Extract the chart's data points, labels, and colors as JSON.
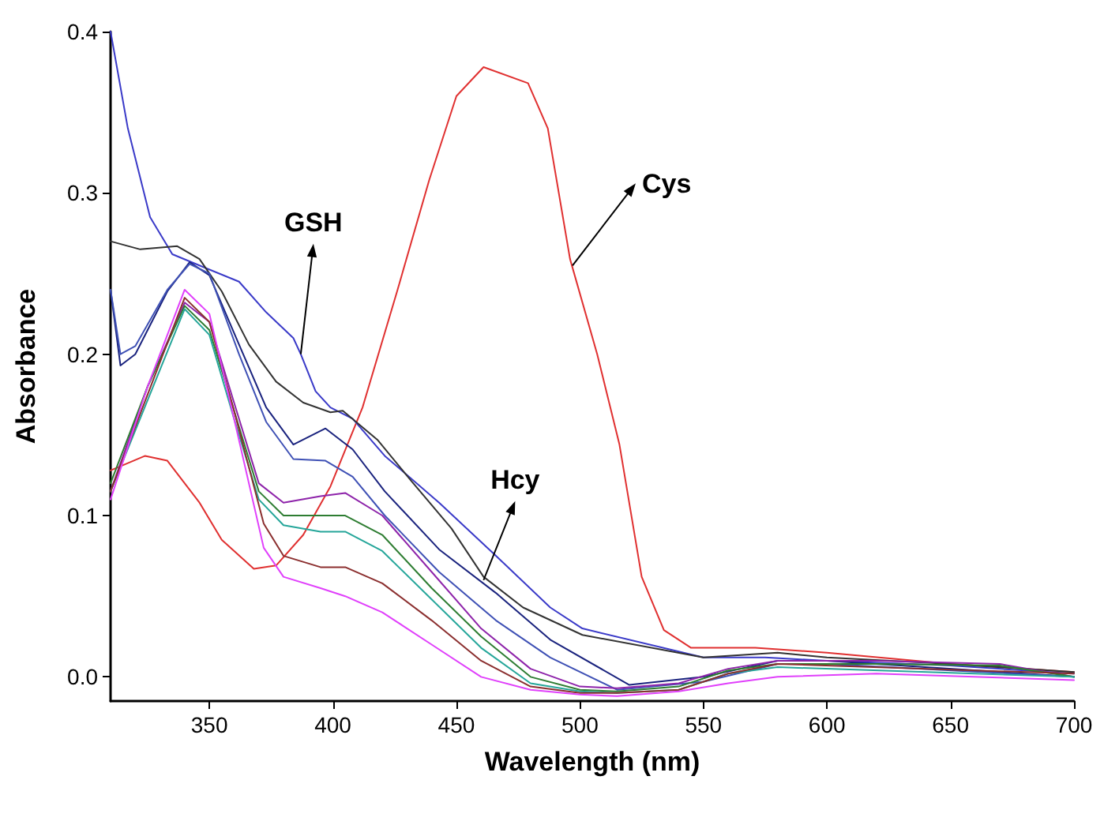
{
  "chart_data": {
    "type": "line",
    "xlabel": "Wavelength (nm)",
    "ylabel": "Absorbance",
    "xlim": [
      310,
      700
    ],
    "xticks": [
      350,
      400,
      450,
      500,
      550,
      600,
      650,
      700
    ],
    "ylim": [
      -0.015,
      0.4
    ],
    "yticks": [
      {
        "value": 0,
        "label": "0.0"
      },
      0.1,
      0.2,
      0.3,
      0.4
    ],
    "marker": "none",
    "line_style": "solid",
    "annotations": [
      {
        "text": "GSH",
        "x": 387,
        "y": 0.2
      },
      {
        "text": "Cys",
        "x": 497,
        "y": 0.255
      },
      {
        "text": "Hcy",
        "x": 461,
        "y": 0.06
      }
    ],
    "series": [
      {
        "color": "#e03030",
        "x": [
          310,
          324,
          333,
          346,
          355,
          368,
          377,
          388,
          399,
          412,
          426,
          439,
          450,
          461,
          479,
          487,
          496,
          507,
          516,
          525,
          534,
          545,
          571,
          600,
          650,
          700
        ],
        "values": [
          0.128,
          0.137,
          0.134,
          0.108,
          0.085,
          0.067,
          0.069,
          0.088,
          0.118,
          0.167,
          0.239,
          0.308,
          0.36,
          0.378,
          0.368,
          0.34,
          0.259,
          0.2,
          0.144,
          0.062,
          0.029,
          0.018,
          0.018,
          0.015,
          0.008,
          0.003
        ]
      },
      {
        "color": "#3a3ac8",
        "x": [
          310,
          317,
          326,
          335,
          346,
          362,
          373,
          384,
          387,
          393,
          399,
          408,
          421,
          443,
          466,
          488,
          501,
          550,
          575,
          600,
          650,
          700
        ],
        "values": [
          0.4,
          0.34,
          0.285,
          0.262,
          0.255,
          0.245,
          0.226,
          0.21,
          0.2,
          0.177,
          0.167,
          0.16,
          0.137,
          0.108,
          0.075,
          0.043,
          0.03,
          0.012,
          0.012,
          0.01,
          0.007,
          0.002
        ]
      },
      {
        "color": "#333333",
        "x": [
          310,
          322,
          337,
          346,
          355,
          366,
          377,
          388,
          399,
          404,
          418,
          432,
          448,
          461,
          477,
          501,
          550,
          580,
          600,
          650,
          700
        ],
        "values": [
          0.27,
          0.265,
          0.267,
          0.259,
          0.239,
          0.206,
          0.183,
          0.17,
          0.164,
          0.165,
          0.147,
          0.121,
          0.092,
          0.062,
          0.043,
          0.026,
          0.012,
          0.015,
          0.012,
          0.008,
          0.003
        ]
      },
      {
        "color": "#1a237e",
        "x": [
          310,
          314,
          320,
          333,
          342,
          350,
          362,
          373,
          384,
          397,
          408,
          421,
          443,
          466,
          488,
          520,
          550,
          580,
          600,
          700
        ],
        "values": [
          0.24,
          0.193,
          0.2,
          0.239,
          0.257,
          0.249,
          0.206,
          0.167,
          0.144,
          0.154,
          0.141,
          0.115,
          0.079,
          0.052,
          0.023,
          -0.005,
          0.0,
          0.01,
          0.01,
          0.0
        ]
      },
      {
        "color": "#3f51b5",
        "x": [
          310,
          314,
          320,
          333,
          342,
          350,
          362,
          373,
          384,
          397,
          408,
          421,
          443,
          466,
          488,
          515,
          550,
          580,
          600,
          700
        ],
        "values": [
          0.24,
          0.2,
          0.205,
          0.24,
          0.256,
          0.25,
          0.2,
          0.158,
          0.135,
          0.134,
          0.124,
          0.1,
          0.065,
          0.035,
          0.012,
          -0.008,
          -0.003,
          0.008,
          0.008,
          0.0
        ]
      },
      {
        "color": "#8e24aa",
        "x": [
          310,
          325,
          340,
          350,
          360,
          370,
          380,
          395,
          405,
          420,
          440,
          460,
          480,
          500,
          515,
          540,
          560,
          580,
          620,
          670,
          700
        ],
        "values": [
          0.115,
          0.18,
          0.232,
          0.22,
          0.17,
          0.12,
          0.108,
          0.112,
          0.114,
          0.1,
          0.065,
          0.03,
          0.005,
          -0.006,
          -0.007,
          -0.004,
          0.005,
          0.01,
          0.01,
          0.008,
          0.0
        ]
      },
      {
        "color": "#2e7d32",
        "x": [
          310,
          325,
          340,
          350,
          360,
          370,
          380,
          395,
          405,
          420,
          440,
          460,
          480,
          500,
          515,
          540,
          560,
          580,
          620,
          670,
          700
        ],
        "values": [
          0.12,
          0.18,
          0.23,
          0.215,
          0.165,
          0.115,
          0.1,
          0.1,
          0.1,
          0.088,
          0.055,
          0.025,
          0.0,
          -0.008,
          -0.009,
          -0.006,
          0.004,
          0.008,
          0.008,
          0.007,
          0.0
        ]
      },
      {
        "color": "#26a69a",
        "x": [
          310,
          340,
          350,
          360,
          370,
          380,
          395,
          405,
          420,
          440,
          460,
          480,
          500,
          515,
          540,
          560,
          580,
          700
        ],
        "values": [
          0.115,
          0.228,
          0.212,
          0.16,
          0.11,
          0.094,
          0.09,
          0.09,
          0.078,
          0.048,
          0.018,
          -0.004,
          -0.009,
          -0.01,
          -0.008,
          0.002,
          0.006,
          0.0
        ]
      },
      {
        "color": "#8b2f2f",
        "x": [
          310,
          340,
          350,
          360,
          372,
          380,
          395,
          405,
          420,
          440,
          460,
          480,
          500,
          515,
          540,
          560,
          580,
          700
        ],
        "values": [
          0.115,
          0.235,
          0.22,
          0.165,
          0.095,
          0.075,
          0.068,
          0.068,
          0.058,
          0.035,
          0.01,
          -0.006,
          -0.01,
          -0.01,
          -0.008,
          0.002,
          0.008,
          0.002
        ]
      },
      {
        "color": "#e040fb",
        "x": [
          310,
          325,
          340,
          350,
          360,
          372,
          380,
          395,
          405,
          420,
          440,
          460,
          480,
          500,
          515,
          540,
          560,
          580,
          620,
          700
        ],
        "values": [
          0.11,
          0.18,
          0.24,
          0.225,
          0.16,
          0.08,
          0.062,
          0.055,
          0.05,
          0.04,
          0.02,
          0.0,
          -0.008,
          -0.011,
          -0.012,
          -0.009,
          -0.004,
          0.0,
          0.002,
          -0.002
        ]
      }
    ]
  }
}
